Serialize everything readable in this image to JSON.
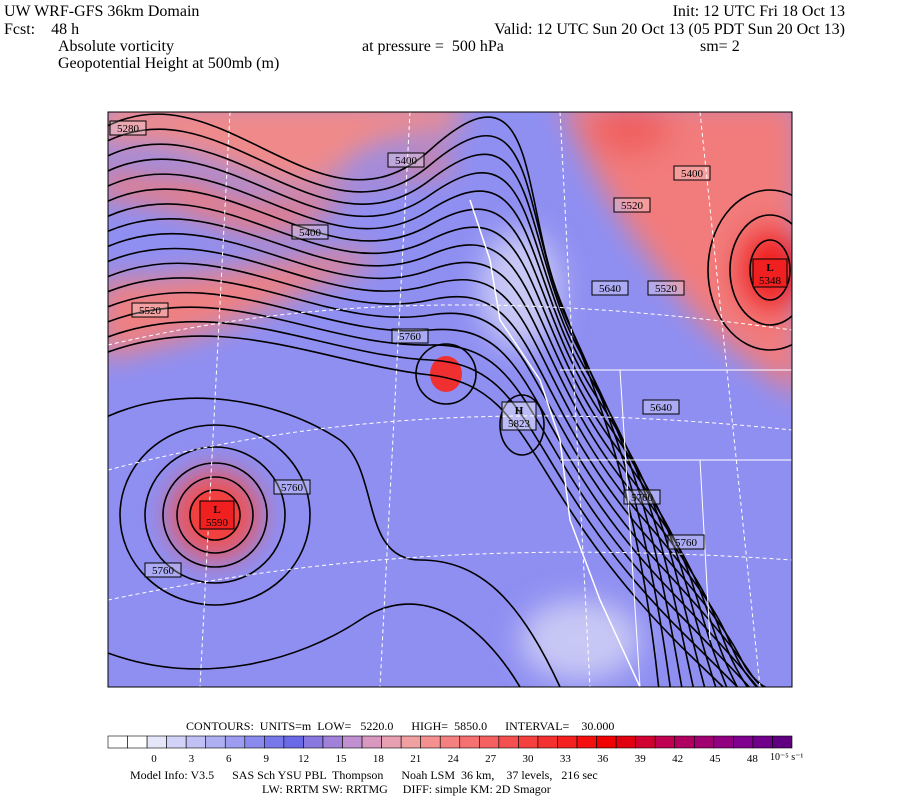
{
  "header": {
    "title": "UW WRF-GFS 36km Domain",
    "init": "Init: 12 UTC Fri 18 Oct 13",
    "fcst": "Fcst:    48 h",
    "valid": "Valid: 12 UTC Sun 20 Oct 13 (05 PDT Sun 20 Oct 13)",
    "field": "Absolute vorticity",
    "pressure": "at pressure =  500 hPa",
    "smooth": "sm= 2",
    "contour_field": "Geopotential Height at 500mb (m)"
  },
  "map": {
    "contour_labels": [
      5280,
      5400,
      5400,
      5400,
      5520,
      5520,
      5640,
      5520,
      5760,
      5640,
      5760,
      5760,
      5760,
      5760
    ],
    "centers": [
      {
        "symbol": "L",
        "value": 5348
      },
      {
        "symbol": "H",
        "value": 5823
      },
      {
        "symbol": "L",
        "value": 5590
      }
    ]
  },
  "footer": {
    "contours": "CONTOURS:  UNITS=m  LOW=   5220.0      HIGH=  5850.0      INTERVAL=    30.000",
    "model_info": "Model Info: V3.5      SAS Sch YSU PBL  Thompson      Noah LSM  36 km,    37 levels,   216 sec",
    "physics": "LW: RRTM SW: RRTMG     DIFF: simple KM: 2D Smagor"
  },
  "colorbar": {
    "ticks": [
      0,
      3,
      6,
      9,
      12,
      15,
      18,
      21,
      24,
      27,
      30,
      33,
      36,
      39,
      42,
      45,
      48
    ],
    "unit": "10⁻⁵ s⁻¹"
  }
}
